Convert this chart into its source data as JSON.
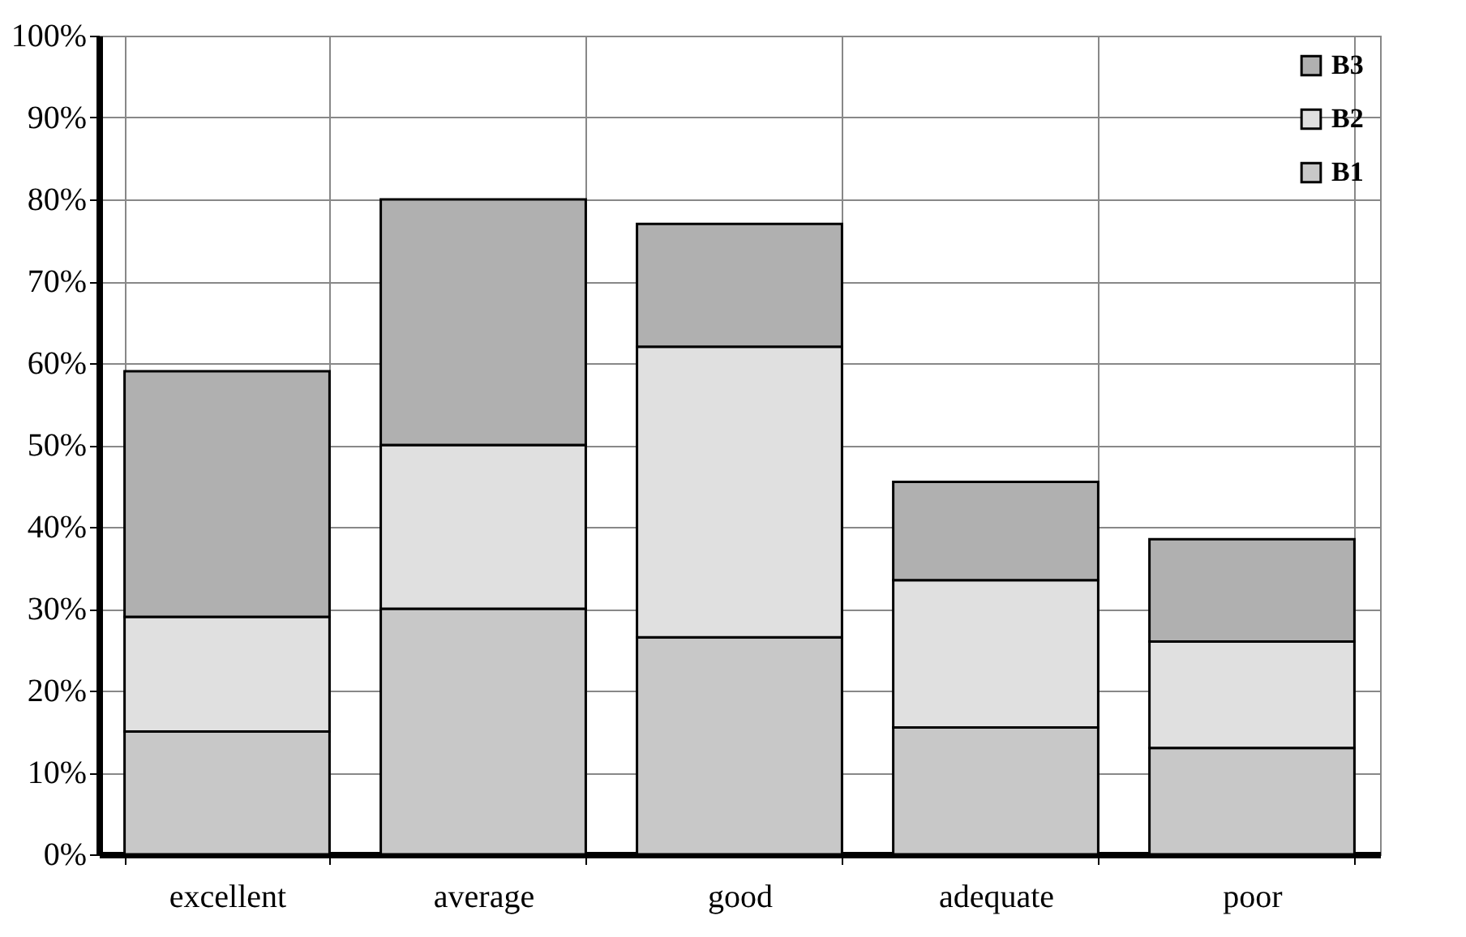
{
  "chart_data": {
    "type": "bar",
    "stacked": true,
    "categories": [
      "excellent",
      "average",
      "good",
      "adequate",
      "poor"
    ],
    "series": [
      {
        "name": "B1",
        "color": "#c8c8c8",
        "values": [
          15,
          30,
          26.5,
          15.5,
          13
        ]
      },
      {
        "name": "B2",
        "color": "#e0e0e0",
        "values": [
          14,
          20,
          35.5,
          18,
          13
        ]
      },
      {
        "name": "B3",
        "color": "#b0b0b0",
        "values": [
          30,
          30,
          15,
          12,
          12.5
        ]
      }
    ],
    "ylim": [
      0,
      100
    ],
    "yticks": [
      {
        "value": 0,
        "label": "0%"
      },
      {
        "value": 10,
        "label": "10%"
      },
      {
        "value": 20,
        "label": "20%"
      },
      {
        "value": 30,
        "label": "30%"
      },
      {
        "value": 40,
        "label": "40%"
      },
      {
        "value": 50,
        "label": "50%"
      },
      {
        "value": 60,
        "label": "60%"
      },
      {
        "value": 70,
        "label": "70%"
      },
      {
        "value": 80,
        "label": "80%"
      },
      {
        "value": 90,
        "label": "90%"
      },
      {
        "value": 100,
        "label": "100%"
      }
    ],
    "grid": true,
    "legend": "top right"
  }
}
